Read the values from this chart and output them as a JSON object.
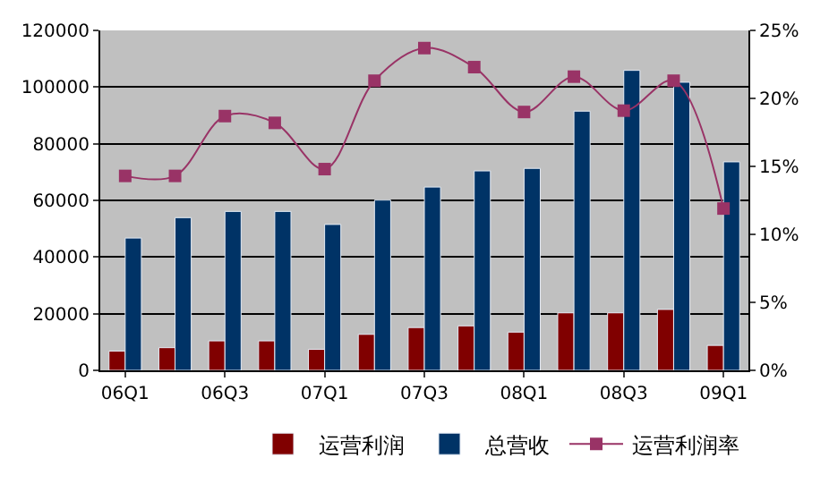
{
  "chart_data": {
    "type": "bar",
    "categories": [
      "06Q1",
      null,
      "06Q3",
      null,
      "07Q1",
      null,
      "07Q3",
      null,
      "08Q1",
      null,
      "08Q3",
      null,
      "09Q1"
    ],
    "series": [
      {
        "name": "运营利润",
        "color": "#800000",
        "values": [
          6800,
          8000,
          10400,
          10400,
          7400,
          12700,
          15100,
          15700,
          13500,
          20300,
          20300,
          21500,
          8800
        ]
      },
      {
        "name": "总营收",
        "color": "#003366",
        "values": [
          46700,
          53900,
          56100,
          56100,
          51500,
          60100,
          64700,
          70400,
          71300,
          91500,
          105900,
          101700,
          73600
        ]
      },
      {
        "name": "运营利润率",
        "type": "line",
        "axis": "y2",
        "color": "#993366",
        "marker": "square",
        "values": [
          14.3,
          14.3,
          18.7,
          18.2,
          14.8,
          21.3,
          23.7,
          22.3,
          19.0,
          21.6,
          19.1,
          21.3,
          11.9
        ]
      }
    ],
    "ylim": [
      0,
      120000
    ],
    "yticks": [
      0,
      20000,
      40000,
      60000,
      80000,
      100000,
      120000
    ],
    "y2lim": [
      0,
      25
    ],
    "y2ticks": [
      {
        "value": 0,
        "label": "0%"
      },
      {
        "value": 5,
        "label": "5%"
      },
      {
        "value": 10,
        "label": "10%"
      },
      {
        "value": 15,
        "label": "15%"
      },
      {
        "value": 20,
        "label": "20%"
      },
      {
        "value": 25,
        "label": "25%"
      }
    ],
    "grid": "y",
    "legend": "bottom right"
  }
}
